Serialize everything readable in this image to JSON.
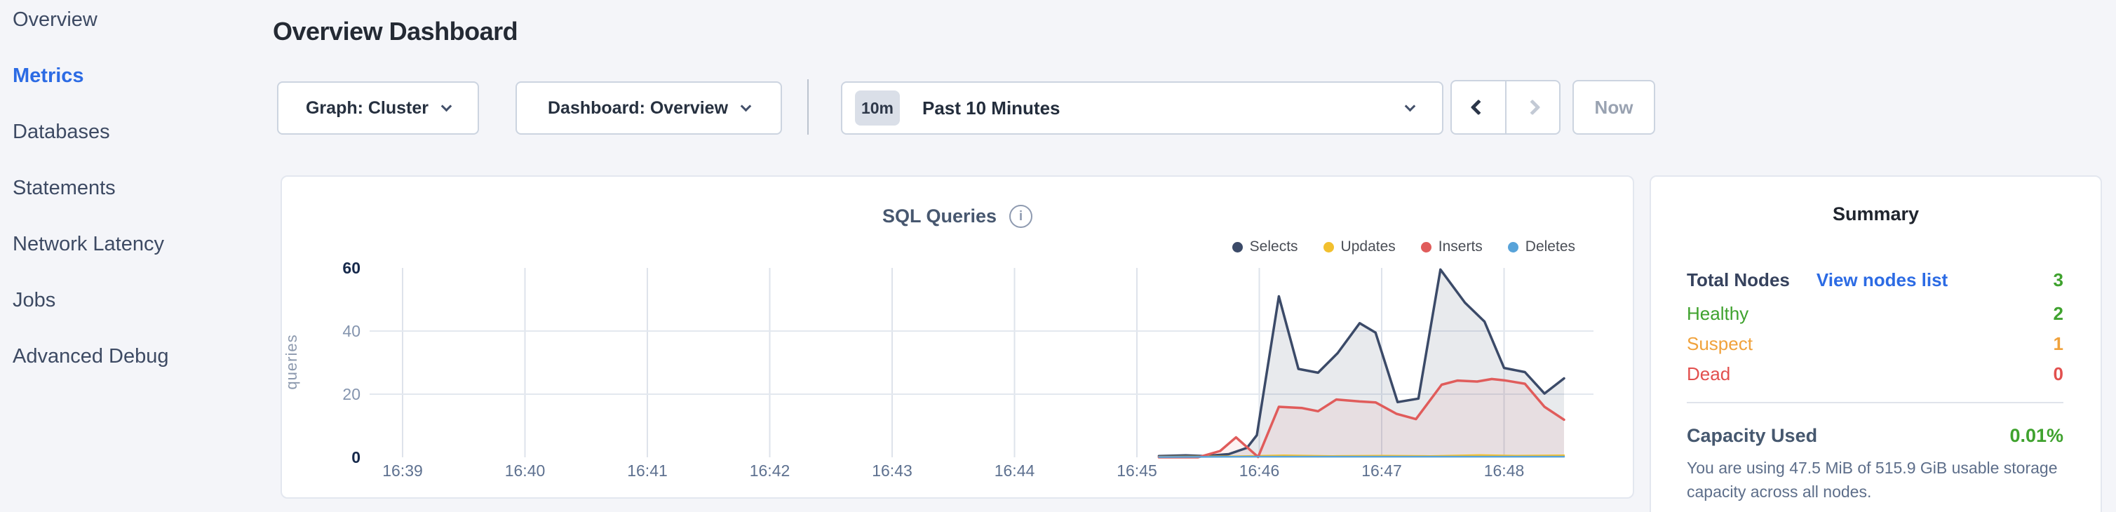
{
  "colors": {
    "accent_blue": "#2c6be4",
    "green": "#3fa22e",
    "orange": "#f0a23c",
    "red": "#e2504e",
    "page_background": "#f4f5f9"
  },
  "icons": {
    "info": "i",
    "chevron_down": "chevron-down",
    "chevron_left": "chevron-left",
    "chevron_right": "chevron-right"
  },
  "sidebar": {
    "items": [
      {
        "label": "Overview",
        "active": false
      },
      {
        "label": "Metrics",
        "active": true
      },
      {
        "label": "Databases",
        "active": false
      },
      {
        "label": "Statements",
        "active": false
      },
      {
        "label": "Network Latency",
        "active": false
      },
      {
        "label": "Jobs",
        "active": false
      },
      {
        "label": "Advanced Debug",
        "active": false
      }
    ]
  },
  "header": {
    "title": "Overview Dashboard"
  },
  "controls": {
    "graph_dropdown": "Graph: Cluster",
    "dashboard_dropdown": "Dashboard: Overview",
    "time_badge": "10m",
    "time_label": "Past 10 Minutes",
    "now_label": "Now"
  },
  "chart_data": {
    "type": "area",
    "title": "SQL Queries",
    "ylabel": "queries",
    "x_ticks": [
      "16:39",
      "16:40",
      "16:41",
      "16:42",
      "16:43",
      "16:44",
      "16:45",
      "16:46",
      "16:47",
      "16:48"
    ],
    "x_unit": "minutes since 16:39",
    "y_ticks": [
      0,
      20,
      40,
      60
    ],
    "ylim": [
      0,
      60
    ],
    "grid": true,
    "legend_position": "top-right",
    "series": [
      {
        "name": "Selects",
        "color": "#3b4a68",
        "fill": "rgba(62,79,109,0.12)",
        "line_width": 3.5,
        "points": [
          [
            6.18,
            0.4
          ],
          [
            6.4,
            0.6
          ],
          [
            6.55,
            0.4
          ],
          [
            6.75,
            1.0
          ],
          [
            6.9,
            3.0
          ],
          [
            6.98,
            7.0
          ],
          [
            7.16,
            51.0
          ],
          [
            7.32,
            28.0
          ],
          [
            7.48,
            26.8
          ],
          [
            7.64,
            33.0
          ],
          [
            7.82,
            42.5
          ],
          [
            7.95,
            39.5
          ],
          [
            8.13,
            17.5
          ],
          [
            8.3,
            18.6
          ],
          [
            8.48,
            59.5
          ],
          [
            8.68,
            49.0
          ],
          [
            8.84,
            43.0
          ],
          [
            9.0,
            28.3
          ],
          [
            9.17,
            27.0
          ],
          [
            9.33,
            20.2
          ],
          [
            9.49,
            25.0
          ]
        ]
      },
      {
        "name": "Updates",
        "color": "#f2c02e",
        "fill": "none",
        "line_width": 2.5,
        "points": [
          [
            6.18,
            0.2
          ],
          [
            6.8,
            0.3
          ],
          [
            7.2,
            0.6
          ],
          [
            7.6,
            0.4
          ],
          [
            8.0,
            0.5
          ],
          [
            8.4,
            0.4
          ],
          [
            8.8,
            0.7
          ],
          [
            9.1,
            0.5
          ],
          [
            9.49,
            0.6
          ]
        ]
      },
      {
        "name": "Inserts",
        "color": "#e05c5b",
        "fill": "rgba(224,92,91,0.08)",
        "line_width": 3.5,
        "points": [
          [
            6.18,
            0.0
          ],
          [
            6.5,
            0.0
          ],
          [
            6.68,
            2.0
          ],
          [
            6.81,
            6.3
          ],
          [
            6.99,
            0.1
          ],
          [
            7.16,
            16.0
          ],
          [
            7.35,
            15.6
          ],
          [
            7.48,
            14.6
          ],
          [
            7.63,
            18.3
          ],
          [
            7.82,
            17.7
          ],
          [
            7.95,
            17.4
          ],
          [
            8.12,
            13.8
          ],
          [
            8.28,
            12.1
          ],
          [
            8.49,
            23.0
          ],
          [
            8.62,
            24.3
          ],
          [
            8.78,
            24.0
          ],
          [
            8.9,
            24.8
          ],
          [
            9.0,
            24.4
          ],
          [
            9.17,
            23.3
          ],
          [
            9.33,
            16.0
          ],
          [
            9.49,
            11.9
          ]
        ]
      },
      {
        "name": "Deletes",
        "color": "#58a3d9",
        "fill": "none",
        "line_width": 2.5,
        "points": [
          [
            6.18,
            0.1
          ],
          [
            7.0,
            0.2
          ],
          [
            8.0,
            0.2
          ],
          [
            9.0,
            0.2
          ],
          [
            9.49,
            0.2
          ]
        ]
      }
    ]
  },
  "summary": {
    "title": "Summary",
    "total_nodes_label": "Total Nodes",
    "view_nodes_link": "View nodes list",
    "total_nodes_value": "3",
    "health": [
      {
        "label": "Healthy",
        "value": "2",
        "color": "#3fa22e"
      },
      {
        "label": "Suspect",
        "value": "1",
        "color": "#f0a23c"
      },
      {
        "label": "Dead",
        "value": "0",
        "color": "#e2504e"
      }
    ],
    "capacity_label": "Capacity Used",
    "capacity_value": "0.01%",
    "capacity_text": "You are using 47.5 MiB of 515.9 GiB usable storage capacity across all nodes."
  }
}
